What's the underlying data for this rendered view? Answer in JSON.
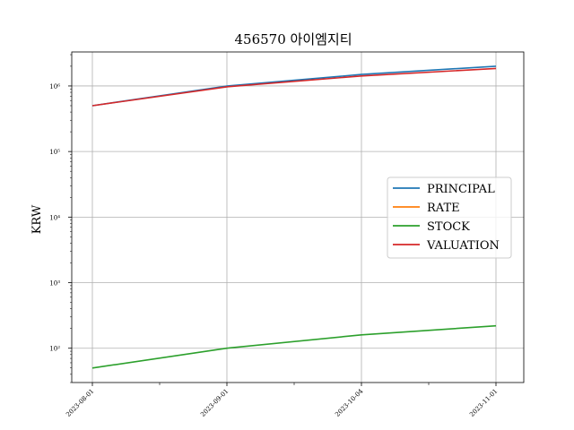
{
  "chart_data": {
    "type": "line",
    "title": "456570 아이엠지티",
    "xlabel": "",
    "ylabel": "KRW",
    "yscale": "log",
    "ylim": [
      30,
      3300000
    ],
    "x": [
      "2023-08-01",
      "2023-09-01",
      "2023-10-04",
      "2023-11-01"
    ],
    "x_tick_labels": [
      "2023-08-01",
      "2023-09-01",
      "2023-10-04",
      "2023-11-01"
    ],
    "y_tick_labels": [
      "10²",
      "10³",
      "10⁴",
      "10⁵",
      "10⁶"
    ],
    "y_tick_values": [
      100,
      1000,
      10000,
      100000,
      1000000
    ],
    "grid": true,
    "legend_position": "center-right",
    "series": [
      {
        "name": "PRINCIPAL",
        "color": "#1f77b4",
        "values": [
          500000,
          1000000,
          1500000,
          2000000
        ]
      },
      {
        "name": "RATE",
        "color": "#ff7f0e",
        "values": [
          null,
          null,
          null,
          null
        ]
      },
      {
        "name": "STOCK",
        "color": "#2ca02c",
        "values": [
          50,
          100,
          160,
          220
        ]
      },
      {
        "name": "VALUATION",
        "color": "#d62728",
        "values": [
          500000,
          970000,
          1420000,
          1850000
        ]
      }
    ]
  }
}
